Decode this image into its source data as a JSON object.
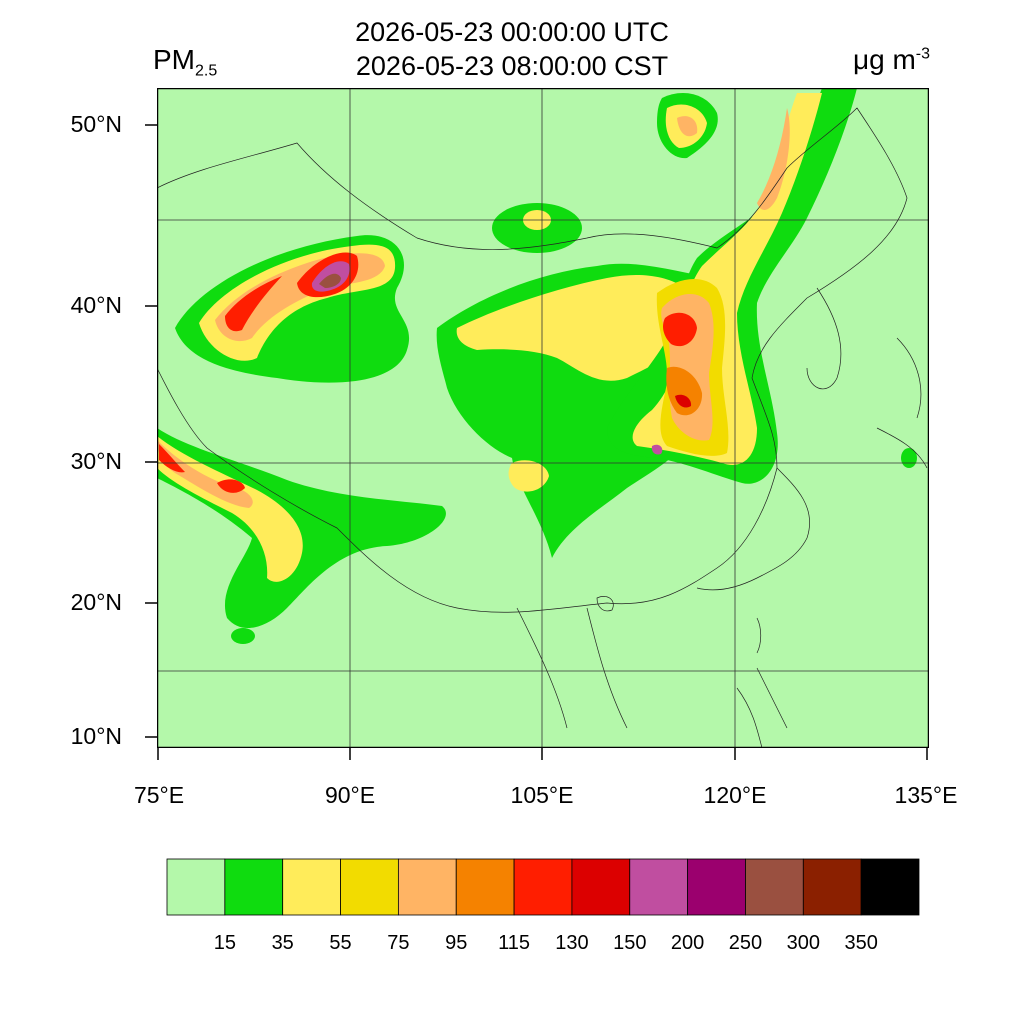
{
  "header": {
    "title_utc": "2026-05-23 00:00:00 UTC",
    "title_cst": "2026-05-23 08:00:00 CST",
    "variable_main": "PM",
    "variable_sub": "2.5",
    "unit_main": "μg m",
    "unit_sup": "-3"
  },
  "axes": {
    "lat_labels": [
      "50°N",
      "40°N",
      "30°N",
      "20°N",
      "10°N"
    ],
    "lon_labels": [
      "75°E",
      "90°E",
      "105°E",
      "120°E",
      "135°E"
    ]
  },
  "colorbar": {
    "colors": [
      "#b4f8aa",
      "#0fdc0f",
      "#ffec5a",
      "#f2dc00",
      "#ffb464",
      "#f58200",
      "#ff1e00",
      "#dc0000",
      "#c04ea0",
      "#9b006e",
      "#9a5040",
      "#8b2000",
      "#000000"
    ],
    "labels": [
      "15",
      "35",
      "55",
      "75",
      "95",
      "115",
      "130",
      "150",
      "200",
      "250",
      "300",
      "350"
    ]
  },
  "map": {
    "background_color": "#b4f8aa",
    "levels": [
      "15",
      "35",
      "55",
      "75",
      "95",
      "115",
      "130",
      "150",
      "200",
      "250"
    ]
  }
}
